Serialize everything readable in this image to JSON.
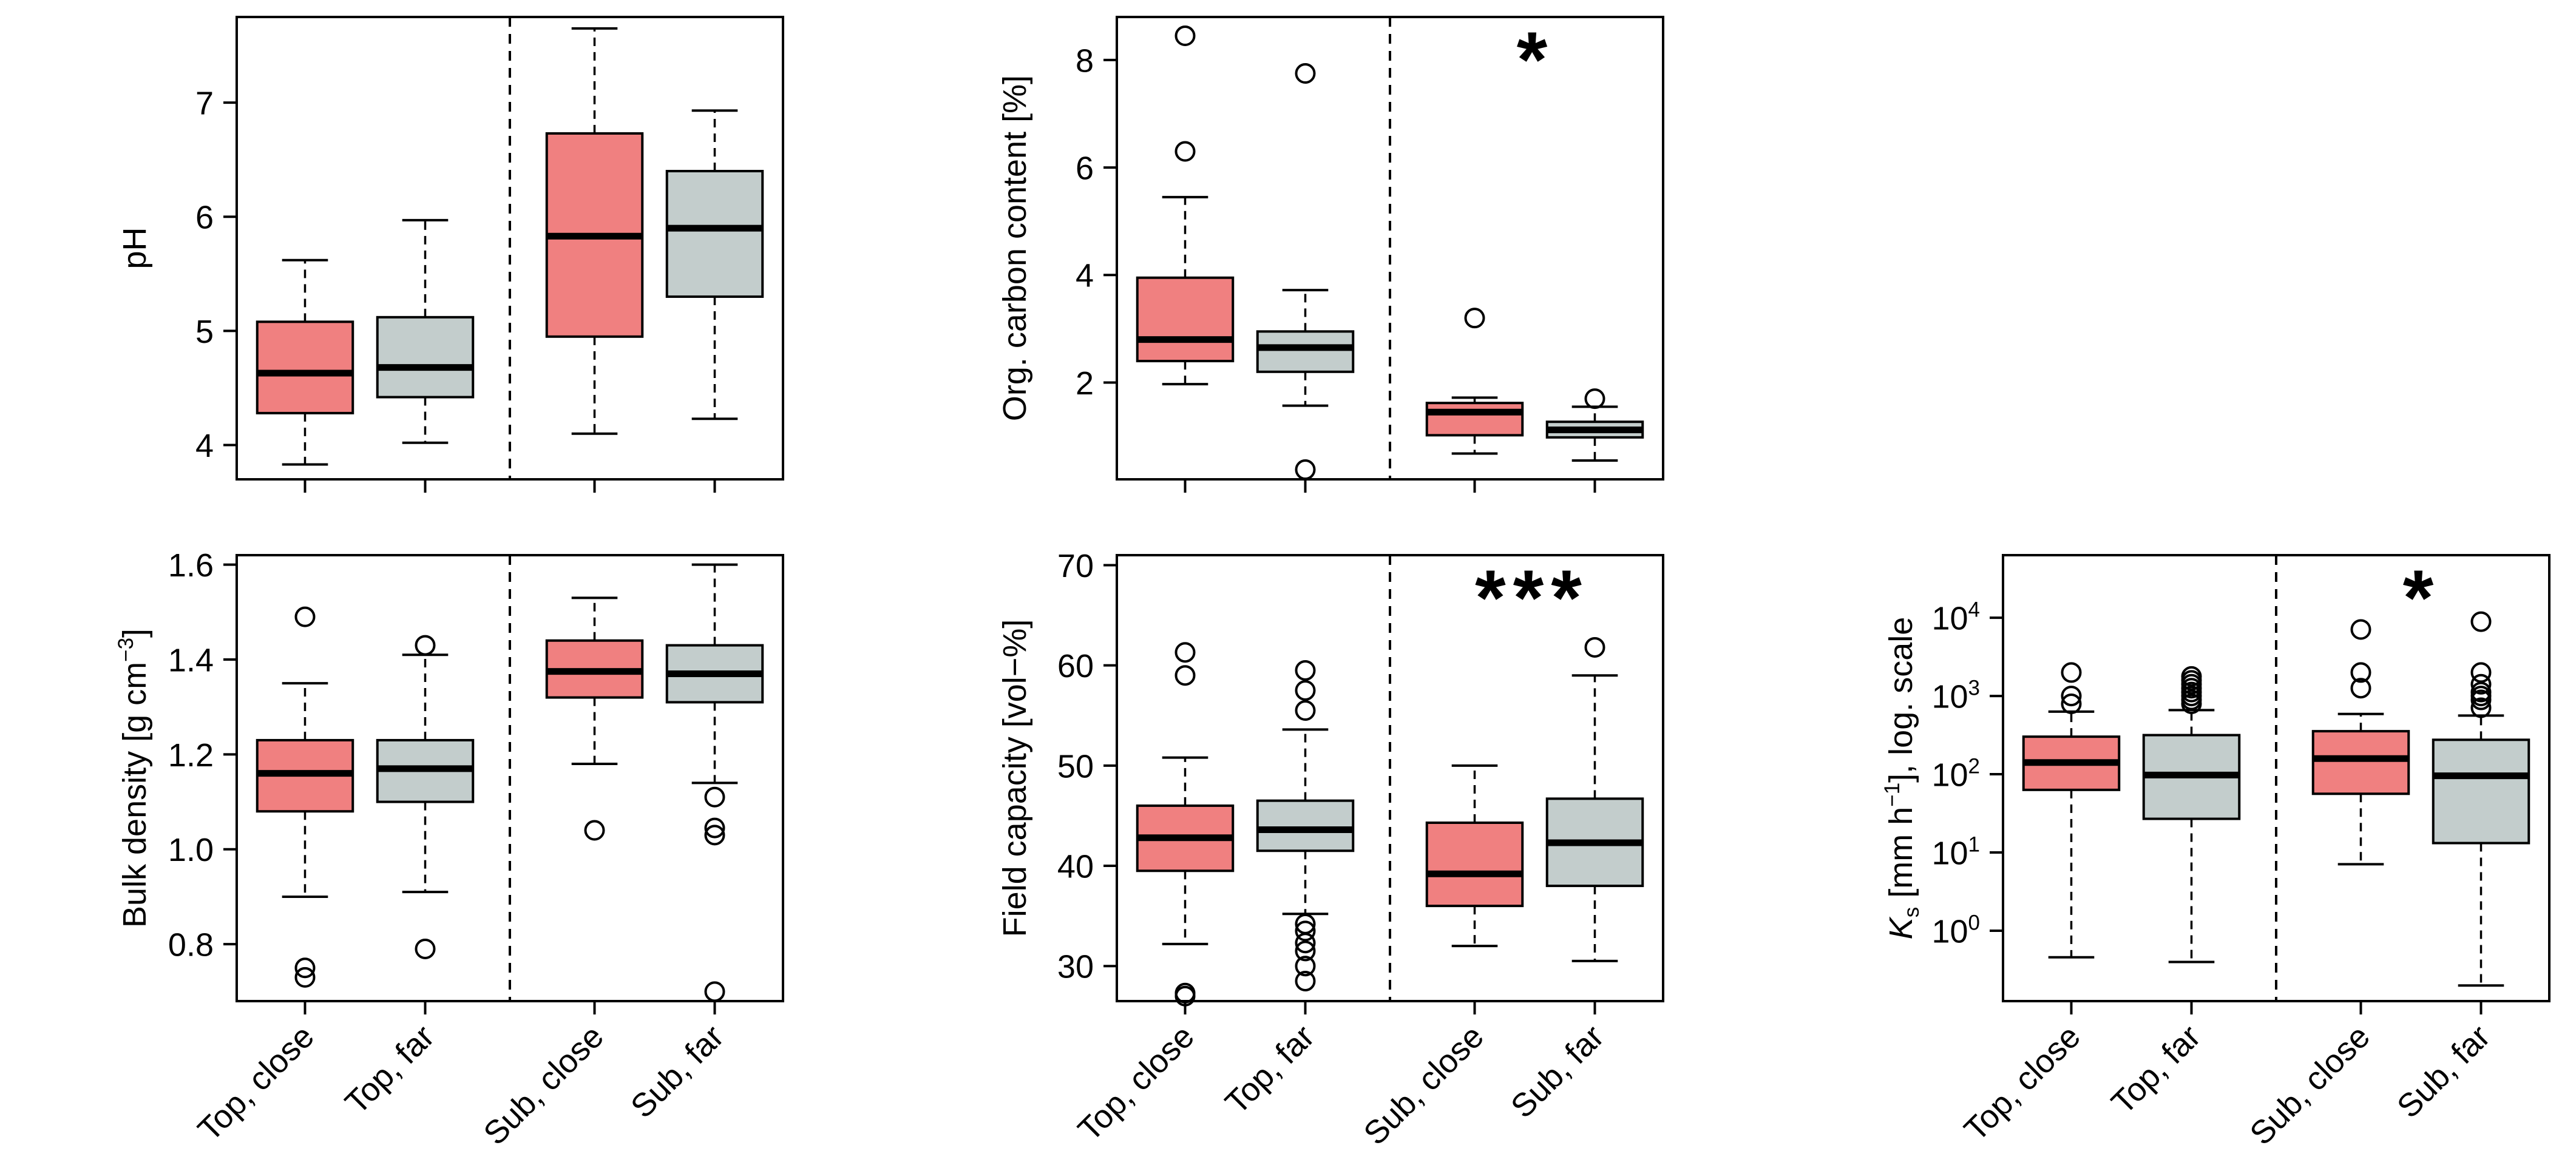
{
  "colors": {
    "close": "#f08080",
    "far": "#c3cdcc",
    "line": "#000000",
    "background": "#ffffff"
  },
  "chart_data": [
    {
      "id": "ph",
      "type": "boxplot",
      "scale": "linear",
      "ylabel": "pH",
      "ylim": [
        3.7,
        7.75
      ],
      "yticks": [
        4,
        5,
        6,
        7
      ],
      "ytick_labels": [
        "4",
        "5",
        "6",
        "7"
      ],
      "categories": [
        "Top, close",
        "Top, far",
        "Sub, close",
        "Sub, far"
      ],
      "show_xlabels": false,
      "significance": "",
      "boxes": [
        {
          "category": "Top, close",
          "group": "close",
          "whislo": 3.83,
          "q1": 4.28,
          "med": 4.63,
          "q3": 5.08,
          "whishi": 5.62,
          "fliers": []
        },
        {
          "category": "Top, far",
          "group": "far",
          "whislo": 4.02,
          "q1": 4.42,
          "med": 4.68,
          "q3": 5.12,
          "whishi": 5.97,
          "fliers": []
        },
        {
          "category": "Sub, close",
          "group": "close",
          "whislo": 4.1,
          "q1": 4.95,
          "med": 5.83,
          "q3": 6.73,
          "whishi": 7.65,
          "fliers": []
        },
        {
          "category": "Sub, far",
          "group": "far",
          "whislo": 4.23,
          "q1": 5.3,
          "med": 5.9,
          "q3": 6.4,
          "whishi": 6.93,
          "fliers": []
        }
      ]
    },
    {
      "id": "org_carbon",
      "type": "boxplot",
      "scale": "linear",
      "ylabel": "Org. carbon content [%]",
      "ylim": [
        0.2,
        8.8
      ],
      "yticks": [
        2,
        4,
        6,
        8
      ],
      "ytick_labels": [
        "2",
        "4",
        "6",
        "8"
      ],
      "categories": [
        "Top, close",
        "Top, far",
        "Sub, close",
        "Sub, far"
      ],
      "show_xlabels": false,
      "significance": "*",
      "boxes": [
        {
          "category": "Top, close",
          "group": "close",
          "whislo": 1.97,
          "q1": 2.4,
          "med": 2.8,
          "q3": 3.95,
          "whishi": 5.45,
          "fliers": [
            6.3,
            8.45
          ]
        },
        {
          "category": "Top, far",
          "group": "far",
          "whislo": 1.57,
          "q1": 2.2,
          "med": 2.65,
          "q3": 2.95,
          "whishi": 3.72,
          "fliers": [
            0.38,
            7.75
          ]
        },
        {
          "category": "Sub, close",
          "group": "close",
          "whislo": 0.68,
          "q1": 1.02,
          "med": 1.45,
          "q3": 1.62,
          "whishi": 1.72,
          "fliers": [
            3.2
          ]
        },
        {
          "category": "Sub, far",
          "group": "far",
          "whislo": 0.55,
          "q1": 0.98,
          "med": 1.12,
          "q3": 1.27,
          "whishi": 1.55,
          "fliers": [
            1.7
          ]
        }
      ]
    },
    {
      "id": "bulk_density",
      "type": "boxplot",
      "scale": "linear",
      "ylabel": "Bulk density [g cm⁻³]",
      "ylim": [
        0.68,
        1.62
      ],
      "yticks": [
        0.8,
        1.0,
        1.2,
        1.4,
        1.6
      ],
      "ytick_labels": [
        "0.8",
        "1.0",
        "1.2",
        "1.4",
        "1.6"
      ],
      "categories": [
        "Top, close",
        "Top, far",
        "Sub, close",
        "Sub, far"
      ],
      "show_xlabels": true,
      "significance": "",
      "boxes": [
        {
          "category": "Top, close",
          "group": "close",
          "whislo": 0.9,
          "q1": 1.08,
          "med": 1.16,
          "q3": 1.23,
          "whishi": 1.35,
          "fliers": [
            0.73,
            0.75,
            1.49
          ]
        },
        {
          "category": "Top, far",
          "group": "far",
          "whislo": 0.91,
          "q1": 1.1,
          "med": 1.17,
          "q3": 1.23,
          "whishi": 1.41,
          "fliers": [
            0.79,
            1.43
          ]
        },
        {
          "category": "Sub, close",
          "group": "close",
          "whislo": 1.18,
          "q1": 1.32,
          "med": 1.375,
          "q3": 1.44,
          "whishi": 1.53,
          "fliers": [
            1.04
          ]
        },
        {
          "category": "Sub, far",
          "group": "far",
          "whislo": 1.14,
          "q1": 1.31,
          "med": 1.37,
          "q3": 1.43,
          "whishi": 1.6,
          "fliers": [
            0.7,
            1.03,
            1.045,
            1.11
          ]
        }
      ]
    },
    {
      "id": "field_capacity",
      "type": "boxplot",
      "scale": "linear",
      "ylabel": "Field capacity [vol−%]",
      "ylim": [
        26.5,
        71
      ],
      "yticks": [
        30,
        40,
        50,
        60,
        70
      ],
      "ytick_labels": [
        "30",
        "40",
        "50",
        "60",
        "70"
      ],
      "categories": [
        "Top, close",
        "Top, far",
        "Sub, close",
        "Sub, far"
      ],
      "show_xlabels": true,
      "significance": "***",
      "boxes": [
        {
          "category": "Top, close",
          "group": "close",
          "whislo": 32.2,
          "q1": 39.5,
          "med": 42.8,
          "q3": 46,
          "whishi": 50.8,
          "fliers": [
            27,
            27.3,
            59,
            61.3
          ]
        },
        {
          "category": "Top, far",
          "group": "far",
          "whislo": 35.2,
          "q1": 41.5,
          "med": 43.6,
          "q3": 46.5,
          "whishi": 53.6,
          "fliers": [
            28.5,
            30,
            31.5,
            32.3,
            33.5,
            34.2,
            55.5,
            57.5,
            59.5
          ]
        },
        {
          "category": "Sub, close",
          "group": "close",
          "whislo": 32,
          "q1": 36,
          "med": 39.2,
          "q3": 44.3,
          "whishi": 50,
          "fliers": []
        },
        {
          "category": "Sub, far",
          "group": "far",
          "whislo": 30.5,
          "q1": 38,
          "med": 42.3,
          "q3": 46.7,
          "whishi": 59,
          "fliers": [
            61.8
          ]
        }
      ]
    },
    {
      "id": "ks",
      "type": "boxplot",
      "scale": "log10",
      "ylabel": "Ks [mm h⁻¹], log. scale",
      "ylim": [
        -0.9,
        4.8
      ],
      "yticks": [
        0,
        1,
        2,
        3,
        4
      ],
      "ytick_labels": [
        "10⁰",
        "10¹",
        "10²",
        "10³",
        "10⁴"
      ],
      "categories": [
        "Top, close",
        "Top, far",
        "Sub, close",
        "Sub, far"
      ],
      "show_xlabels": true,
      "significance": "*",
      "boxes": [
        {
          "category": "Top, close",
          "group": "close",
          "whislo": -0.34,
          "q1": 1.8,
          "med": 2.15,
          "q3": 2.48,
          "whishi": 2.8,
          "fliers": [
            2.9,
            3.0,
            3.3
          ]
        },
        {
          "category": "Top, far",
          "group": "far",
          "whislo": -0.4,
          "q1": 1.43,
          "med": 1.99,
          "q3": 2.5,
          "whishi": 2.82,
          "fliers": [
            2.9,
            2.95,
            3.0,
            3.05,
            3.1,
            3.15,
            3.2,
            3.25
          ]
        },
        {
          "category": "Sub, close",
          "group": "close",
          "whislo": 0.85,
          "q1": 1.75,
          "med": 2.2,
          "q3": 2.55,
          "whishi": 2.77,
          "fliers": [
            3.1,
            3.3,
            3.85
          ]
        },
        {
          "category": "Sub, far",
          "group": "far",
          "whislo": -0.7,
          "q1": 1.12,
          "med": 1.98,
          "q3": 2.44,
          "whishi": 2.75,
          "fliers": [
            2.85,
            2.95,
            3.0,
            3.05,
            3.15,
            3.3,
            3.95
          ]
        }
      ]
    }
  ]
}
